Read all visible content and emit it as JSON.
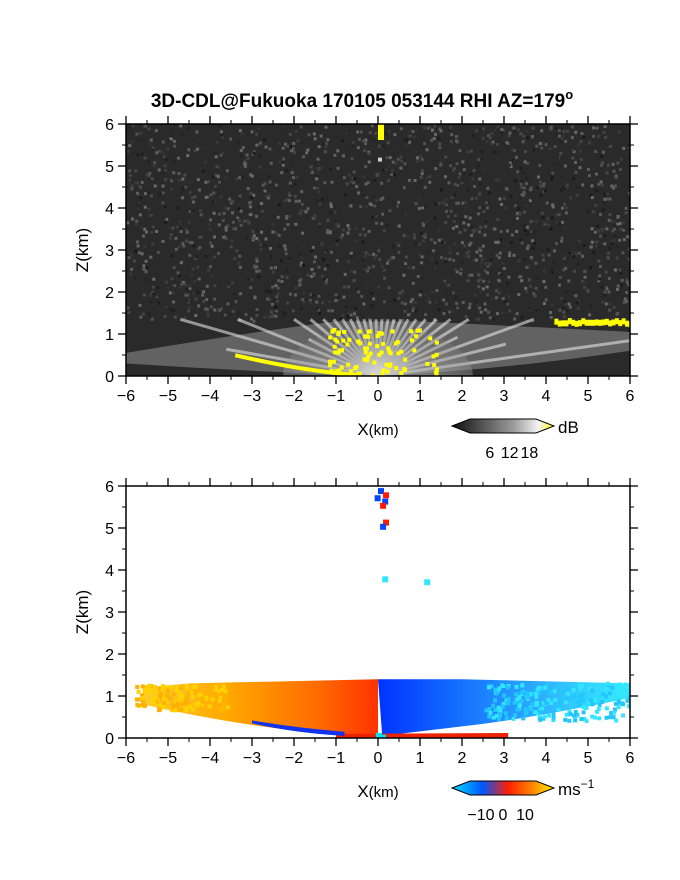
{
  "chart_data": [
    {
      "type": "heatmap",
      "title": "3D-CDL@Fukuoka 170105 053144 RHI AZ=179",
      "title_superscript": "o",
      "xlabel": "X",
      "xlabel_unit": "(km)",
      "ylabel": "Z(km)",
      "xlim": [
        -6,
        6
      ],
      "ylim": [
        0,
        6
      ],
      "xticks": [
        "−6",
        "−5",
        "−4",
        "−3",
        "−2",
        "−1",
        "0",
        "1",
        "2",
        "3",
        "4",
        "5",
        "6"
      ],
      "yticks": [
        "0",
        "1",
        "2",
        "3",
        "4",
        "5",
        "6"
      ],
      "colorbar": {
        "unit": "dB",
        "ticks": [
          "6",
          "12",
          "18"
        ],
        "tick_values": [
          6,
          12,
          18
        ],
        "range": [
          0,
          20
        ],
        "colormap": "grayscale-to-yellow"
      },
      "features": {
        "boundary_layer_top_km": 1.3,
        "echo_column": {
          "x": [
            0.0,
            0.2
          ],
          "z": [
            5.9,
            6.0
          ],
          "color": "#ffff00"
        },
        "strong_echo_right": {
          "x": [
            4.2,
            6.0
          ],
          "z": [
            1.2,
            1.3
          ],
          "color": "#ffff00"
        }
      }
    },
    {
      "type": "heatmap",
      "xlabel": "X",
      "xlabel_unit": "(km)",
      "ylabel": "Z(km)",
      "xlim": [
        -6,
        6
      ],
      "ylim": [
        0,
        6
      ],
      "xticks": [
        "−6",
        "−5",
        "−4",
        "−3",
        "−2",
        "−1",
        "0",
        "1",
        "2",
        "3",
        "4",
        "5",
        "6"
      ],
      "yticks": [
        "0",
        "1",
        "2",
        "3",
        "4",
        "5",
        "6"
      ],
      "colorbar": {
        "unit": "ms",
        "unit_superscript": "−1",
        "ticks": [
          "−10",
          "0",
          "10"
        ],
        "tick_values": [
          -10,
          0,
          10
        ],
        "range": [
          -15,
          15
        ],
        "colormap": "cyan-blue-red-yellow"
      },
      "features": {
        "boundary_layer_top_km": 1.4,
        "left_side": "positive velocity (orange/yellow)",
        "right_side": "negative velocity (blue/cyan)"
      }
    }
  ],
  "colors": {
    "yellow": "#ffff00",
    "blue": "#0055ff",
    "cyan": "#00e0ff",
    "red": "#ff2000",
    "orange": "#ff8c00"
  }
}
